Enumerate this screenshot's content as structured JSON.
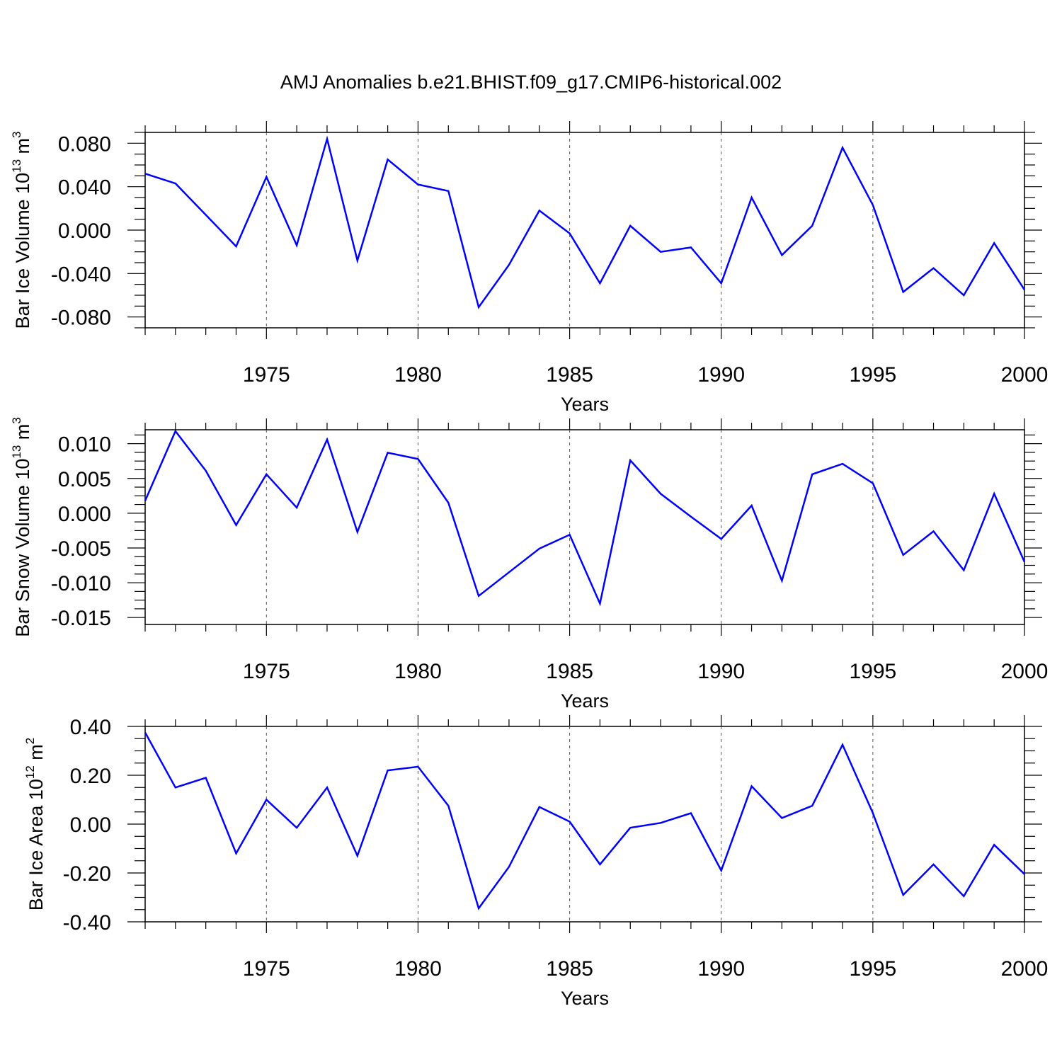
{
  "title": "AMJ Anomalies b.e21.BHIST.f09_g17.CMIP6-historical.002",
  "colors": {
    "line": "#0000ff",
    "axis": "#000000",
    "grid": "#555555"
  },
  "chart_data": [
    {
      "type": "line",
      "ylabel": "Bar Ice Volume 10",
      "ylabel_exp": "13",
      "ylabel_unit": " m",
      "ylabel_unit_exp": "3",
      "xlabel": "Years",
      "xlim": [
        1971,
        2000
      ],
      "ylim": [
        -0.09,
        0.09
      ],
      "xticks": [
        "1975",
        "1980",
        "1985",
        "1990",
        "1995",
        "2000"
      ],
      "yticks": [
        "-0.080",
        "-0.040",
        "0.000",
        "0.040",
        "0.080"
      ],
      "grid": "vertical dashed at major x ticks",
      "x": [
        1971,
        1972,
        1973,
        1974,
        1975,
        1976,
        1977,
        1978,
        1979,
        1980,
        1981,
        1982,
        1983,
        1984,
        1985,
        1986,
        1987,
        1988,
        1989,
        1990,
        1991,
        1992,
        1993,
        1994,
        1995,
        1996,
        1997,
        1998,
        1999,
        2000
      ],
      "values": [
        0.052,
        0.043,
        0.014,
        -0.015,
        0.049,
        -0.014,
        0.084,
        -0.028,
        0.065,
        0.042,
        0.036,
        -0.071,
        -0.032,
        0.018,
        -0.003,
        -0.049,
        0.004,
        -0.02,
        -0.016,
        -0.049,
        0.03,
        -0.023,
        0.004,
        0.076,
        0.023,
        -0.057,
        -0.035,
        -0.06,
        -0.012,
        -0.055
      ]
    },
    {
      "type": "line",
      "ylabel": "Bar Snow Volume 10",
      "ylabel_exp": "13",
      "ylabel_unit": " m",
      "ylabel_unit_exp": "3",
      "xlabel": "Years",
      "xlim": [
        1971,
        2000
      ],
      "ylim": [
        -0.016,
        0.012
      ],
      "xticks": [
        "1975",
        "1980",
        "1985",
        "1990",
        "1995",
        "2000"
      ],
      "yticks": [
        "-0.015",
        "-0.010",
        "-0.005",
        "0.000",
        "0.005",
        "0.010"
      ],
      "grid": "vertical dashed at major x ticks",
      "x": [
        1971,
        1972,
        1973,
        1974,
        1975,
        1976,
        1977,
        1978,
        1979,
        1980,
        1981,
        1982,
        1983,
        1984,
        1985,
        1986,
        1987,
        1988,
        1989,
        1990,
        1991,
        1992,
        1993,
        1994,
        1995,
        1996,
        1997,
        1998,
        1999,
        2000
      ],
      "values": [
        0.0018,
        0.0118,
        0.0061,
        -0.0017,
        0.0056,
        0.0008,
        0.0106,
        -0.0027,
        0.0087,
        0.0078,
        0.0015,
        -0.0119,
        -0.0085,
        -0.0051,
        -0.0031,
        -0.013,
        0.0076,
        0.0028,
        -0.0005,
        -0.0037,
        0.0011,
        -0.0097,
        0.0056,
        0.0071,
        0.0043,
        -0.006,
        -0.0026,
        -0.0082,
        0.0028,
        -0.007
      ]
    },
    {
      "type": "line",
      "ylabel": "Bar Ice Area 10",
      "ylabel_exp": "12",
      "ylabel_unit": " m",
      "ylabel_unit_exp": "2",
      "xlabel": "Years",
      "xlim": [
        1971,
        2000
      ],
      "ylim": [
        -0.4,
        0.4
      ],
      "xticks": [
        "1975",
        "1980",
        "1985",
        "1990",
        "1995",
        "2000"
      ],
      "yticks": [
        "-0.40",
        "-0.20",
        "0.00",
        "0.20",
        "0.40"
      ],
      "grid": "vertical dashed at major x ticks",
      "x": [
        1971,
        1972,
        1973,
        1974,
        1975,
        1976,
        1977,
        1978,
        1979,
        1980,
        1981,
        1982,
        1983,
        1984,
        1985,
        1986,
        1987,
        1988,
        1989,
        1990,
        1991,
        1992,
        1993,
        1994,
        1995,
        1996,
        1997,
        1998,
        1999,
        2000
      ],
      "values": [
        0.375,
        0.15,
        0.19,
        -0.12,
        0.1,
        -0.015,
        0.15,
        -0.13,
        0.22,
        0.235,
        0.075,
        -0.345,
        -0.175,
        0.07,
        0.01,
        -0.165,
        -0.015,
        0.005,
        0.045,
        -0.19,
        0.155,
        0.025,
        0.075,
        0.325,
        0.045,
        -0.29,
        -0.165,
        -0.295,
        -0.085,
        -0.205
      ]
    }
  ]
}
